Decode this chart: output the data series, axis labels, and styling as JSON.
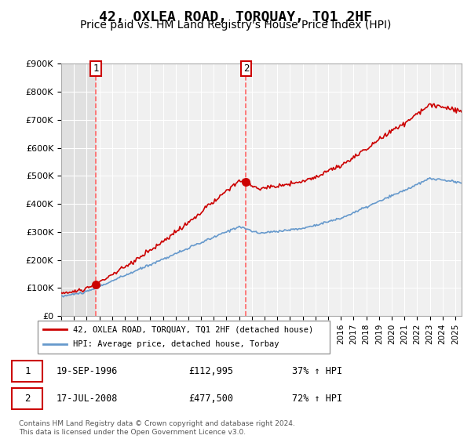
{
  "title": "42, OXLEA ROAD, TORQUAY, TQ1 2HF",
  "subtitle": "Price paid vs. HM Land Registry's House Price Index (HPI)",
  "title_fontsize": 13,
  "subtitle_fontsize": 10,
  "background_color": "#ffffff",
  "plot_bg_color": "#f0f0f0",
  "grid_color": "#ffffff",
  "ylim": [
    0,
    900000
  ],
  "yticks": [
    0,
    100000,
    200000,
    300000,
    400000,
    500000,
    600000,
    700000,
    800000,
    900000
  ],
  "sale1_date_num": 1996.72,
  "sale1_price": 112995,
  "sale2_date_num": 2008.54,
  "sale2_price": 477500,
  "sale1_label": "1",
  "sale2_label": "2",
  "legend_red_label": "42, OXLEA ROAD, TORQUAY, TQ1 2HF (detached house)",
  "legend_blue_label": "HPI: Average price, detached house, Torbay",
  "annotation1_date": "19-SEP-1996",
  "annotation1_price": "£112,995",
  "annotation1_hpi": "37% ↑ HPI",
  "annotation2_date": "17-JUL-2008",
  "annotation2_price": "£477,500",
  "annotation2_hpi": "72% ↑ HPI",
  "footer": "Contains HM Land Registry data © Crown copyright and database right 2024.\nThis data is licensed under the Open Government Licence v3.0.",
  "red_line_color": "#cc0000",
  "blue_line_color": "#6699cc",
  "sale_marker_color": "#cc0000",
  "dashed_line_color": "#ff6666"
}
